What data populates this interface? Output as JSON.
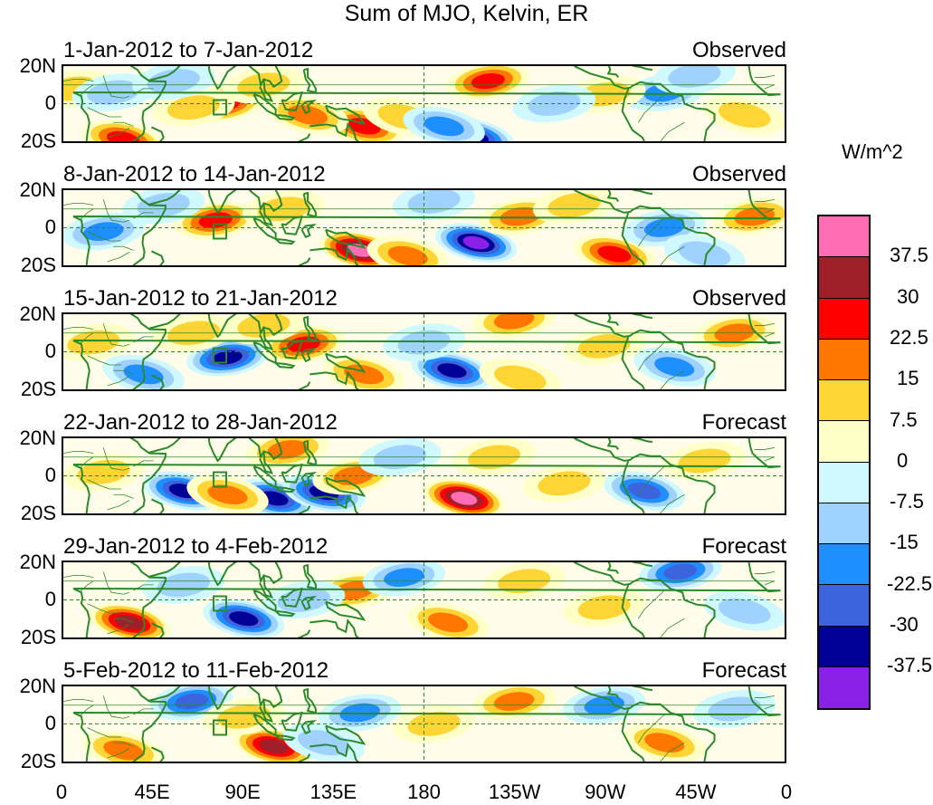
{
  "title": "Sum of MJO, Kelvin, ER",
  "panels": [
    {
      "date_range": "1-Jan-2012 to 7-Jan-2012",
      "status": "Observed",
      "anomalies": [
        {
          "lon": 80,
          "lat": 0,
          "v": 24
        },
        {
          "lon": 65,
          "lat": -2,
          "v": 10
        },
        {
          "lon": 150,
          "lat": -12,
          "v": 25
        },
        {
          "lon": 122,
          "lat": -6,
          "v": 15
        },
        {
          "lon": 170,
          "lat": -7,
          "v": 12
        },
        {
          "lon": 205,
          "lat": -18,
          "v": -35
        },
        {
          "lon": 190,
          "lat": -12,
          "v": -18
        },
        {
          "lon": 212,
          "lat": 12,
          "v": 25
        },
        {
          "lon": 30,
          "lat": -19,
          "v": 25
        },
        {
          "lon": 5,
          "lat": 8,
          "v": 12
        },
        {
          "lon": 25,
          "lat": 6,
          "v": -10
        },
        {
          "lon": 100,
          "lat": 10,
          "v": 12
        },
        {
          "lon": 55,
          "lat": 12,
          "v": -10
        },
        {
          "lon": 300,
          "lat": 6,
          "v": -18
        },
        {
          "lon": 270,
          "lat": 5,
          "v": 12
        },
        {
          "lon": 340,
          "lat": -6,
          "v": 10
        },
        {
          "lon": 245,
          "lat": 0,
          "v": -8
        },
        {
          "lon": 315,
          "lat": 15,
          "v": -10
        }
      ]
    },
    {
      "date_range": "8-Jan-2012 to 14-Jan-2012",
      "status": "Observed",
      "anomalies": [
        {
          "lon": 76,
          "lat": 4,
          "v": 25
        },
        {
          "lon": 148,
          "lat": -12,
          "v": 40
        },
        {
          "lon": 172,
          "lat": -15,
          "v": 22
        },
        {
          "lon": 206,
          "lat": -8,
          "v": -42
        },
        {
          "lon": 228,
          "lat": 6,
          "v": 15
        },
        {
          "lon": 275,
          "lat": -14,
          "v": 25
        },
        {
          "lon": 20,
          "lat": -2,
          "v": -22
        },
        {
          "lon": 110,
          "lat": 10,
          "v": 12
        },
        {
          "lon": 50,
          "lat": 12,
          "v": -10
        },
        {
          "lon": 300,
          "lat": 0,
          "v": -20
        },
        {
          "lon": 345,
          "lat": 6,
          "v": 22
        },
        {
          "lon": 320,
          "lat": -14,
          "v": -10
        },
        {
          "lon": 255,
          "lat": 12,
          "v": 12
        },
        {
          "lon": 185,
          "lat": 14,
          "v": -8
        }
      ]
    },
    {
      "date_range": "15-Jan-2012 to 21-Jan-2012",
      "status": "Observed",
      "anomalies": [
        {
          "lon": 82,
          "lat": -3,
          "v": -35
        },
        {
          "lon": 120,
          "lat": 4,
          "v": 25
        },
        {
          "lon": 150,
          "lat": -12,
          "v": 22
        },
        {
          "lon": 194,
          "lat": -10,
          "v": -36
        },
        {
          "lon": 225,
          "lat": 17,
          "v": 22
        },
        {
          "lon": 228,
          "lat": -14,
          "v": 10
        },
        {
          "lon": 335,
          "lat": 10,
          "v": 22
        },
        {
          "lon": 40,
          "lat": -12,
          "v": -22
        },
        {
          "lon": 100,
          "lat": 14,
          "v": 12
        },
        {
          "lon": 65,
          "lat": 10,
          "v": 10
        },
        {
          "lon": 180,
          "lat": 5,
          "v": -10
        },
        {
          "lon": 305,
          "lat": -8,
          "v": -22
        },
        {
          "lon": 270,
          "lat": 3,
          "v": 8
        },
        {
          "lon": 15,
          "lat": 5,
          "v": 8
        }
      ]
    },
    {
      "date_range": "22-Jan-2012 to 28-Jan-2012",
      "status": "Forecast",
      "anomalies": [
        {
          "lon": 60,
          "lat": -8,
          "v": -32
        },
        {
          "lon": 105,
          "lat": -12,
          "v": -36
        },
        {
          "lon": 130,
          "lat": -9,
          "v": -34
        },
        {
          "lon": 145,
          "lat": 0,
          "v": 22
        },
        {
          "lon": 200,
          "lat": -12,
          "v": 40
        },
        {
          "lon": 82,
          "lat": -10,
          "v": 22
        },
        {
          "lon": 112,
          "lat": 14,
          "v": 15
        },
        {
          "lon": 290,
          "lat": -8,
          "v": -24
        },
        {
          "lon": 215,
          "lat": 10,
          "v": 12
        },
        {
          "lon": 20,
          "lat": 2,
          "v": 10
        },
        {
          "lon": 320,
          "lat": 8,
          "v": 10
        },
        {
          "lon": 250,
          "lat": -4,
          "v": 8
        },
        {
          "lon": 168,
          "lat": 10,
          "v": -10
        }
      ]
    },
    {
      "date_range": "29-Jan-2012 to 4-Feb-2012",
      "status": "Forecast",
      "anomalies": [
        {
          "lon": 33,
          "lat": -12,
          "v": 32
        },
        {
          "lon": 90,
          "lat": -10,
          "v": -34
        },
        {
          "lon": 145,
          "lat": 5,
          "v": 22
        },
        {
          "lon": 192,
          "lat": -12,
          "v": 22
        },
        {
          "lon": 308,
          "lat": 15,
          "v": -26
        },
        {
          "lon": 120,
          "lat": 0,
          "v": -10
        },
        {
          "lon": 230,
          "lat": 10,
          "v": 10
        },
        {
          "lon": 170,
          "lat": 12,
          "v": -15
        },
        {
          "lon": 60,
          "lat": 8,
          "v": -8
        },
        {
          "lon": 270,
          "lat": -4,
          "v": 8
        },
        {
          "lon": 340,
          "lat": -6,
          "v": -8
        }
      ]
    },
    {
      "date_range": "5-Feb-2012 to 11-Feb-2012",
      "status": "Forecast",
      "anomalies": [
        {
          "lon": 64,
          "lat": 12,
          "v": -26
        },
        {
          "lon": 105,
          "lat": -12,
          "v": 32
        },
        {
          "lon": 148,
          "lat": 6,
          "v": -22
        },
        {
          "lon": 30,
          "lat": -14,
          "v": 22
        },
        {
          "lon": 225,
          "lat": 12,
          "v": 18
        },
        {
          "lon": 300,
          "lat": -10,
          "v": 22
        },
        {
          "lon": 270,
          "lat": 10,
          "v": -18
        },
        {
          "lon": 130,
          "lat": -10,
          "v": -12
        },
        {
          "lon": 185,
          "lat": 0,
          "v": 10
        },
        {
          "lon": 335,
          "lat": 8,
          "v": -10
        },
        {
          "lon": 90,
          "lat": 4,
          "v": 10
        }
      ]
    }
  ],
  "lat_labels": [
    "20N",
    "0",
    "20S"
  ],
  "lon_labels": [
    "0",
    "45E",
    "90E",
    "135E",
    "180",
    "135W",
    "90W",
    "45W",
    "0"
  ],
  "legend": {
    "unit": "W/m^2",
    "levels": [
      "37.5",
      "30",
      "22.5",
      "15",
      "7.5",
      "0",
      "-7.5",
      "-15",
      "-22.5",
      "-30",
      "-37.5"
    ],
    "colors": [
      "#ff6eb4",
      "#a0202a",
      "#ff0000",
      "#ff7700",
      "#ffd535",
      "#ffffc8",
      "#d0f8ff",
      "#a0d2ff",
      "#1e8fff",
      "#3c64dc",
      "#000096",
      "#8b21e6"
    ]
  },
  "map_colors": {
    "coast": "#2a8a2a",
    "grid": "#2a8a2a"
  }
}
